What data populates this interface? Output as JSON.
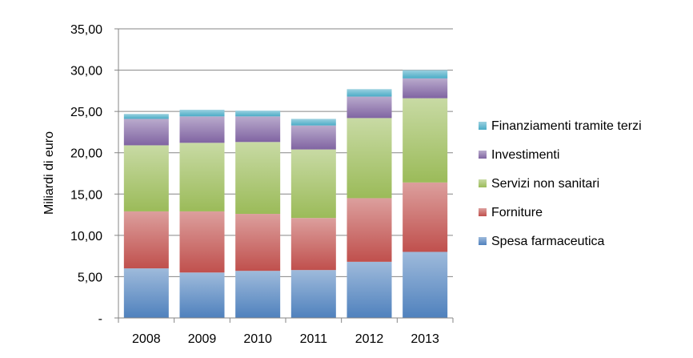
{
  "chart_data": {
    "type": "bar",
    "stacked": true,
    "title": "",
    "xlabel": "",
    "ylabel": "Miliardi di euro",
    "ylim": [
      0,
      35
    ],
    "ytick_step": 5,
    "ytick_labels": [
      "-",
      "5,00",
      "10,00",
      "15,00",
      "20,00",
      "25,00",
      "30,00",
      "35,00"
    ],
    "grid": true,
    "legend_position": "right",
    "categories": [
      "2008",
      "2009",
      "2010",
      "2011",
      "2012",
      "2013"
    ],
    "series": [
      {
        "name": "Spesa farmaceutica",
        "color": "#4f81bd",
        "values": [
          6.0,
          5.5,
          5.7,
          5.8,
          6.8,
          8.0
        ]
      },
      {
        "name": "Forniture",
        "color": "#c0504d",
        "values": [
          6.9,
          7.4,
          6.9,
          6.3,
          7.7,
          8.4
        ]
      },
      {
        "name": "Servizi non sanitari",
        "color": "#9bbb59",
        "values": [
          8.0,
          8.3,
          8.7,
          8.3,
          9.7,
          10.2
        ]
      },
      {
        "name": "Investimenti",
        "color": "#8064a2",
        "values": [
          3.2,
          3.2,
          3.1,
          2.9,
          2.6,
          2.4
        ]
      },
      {
        "name": "Finanziamenti tramite terzi",
        "color": "#4bacc6",
        "values": [
          0.6,
          0.8,
          0.7,
          0.8,
          0.9,
          1.0
        ]
      }
    ]
  }
}
